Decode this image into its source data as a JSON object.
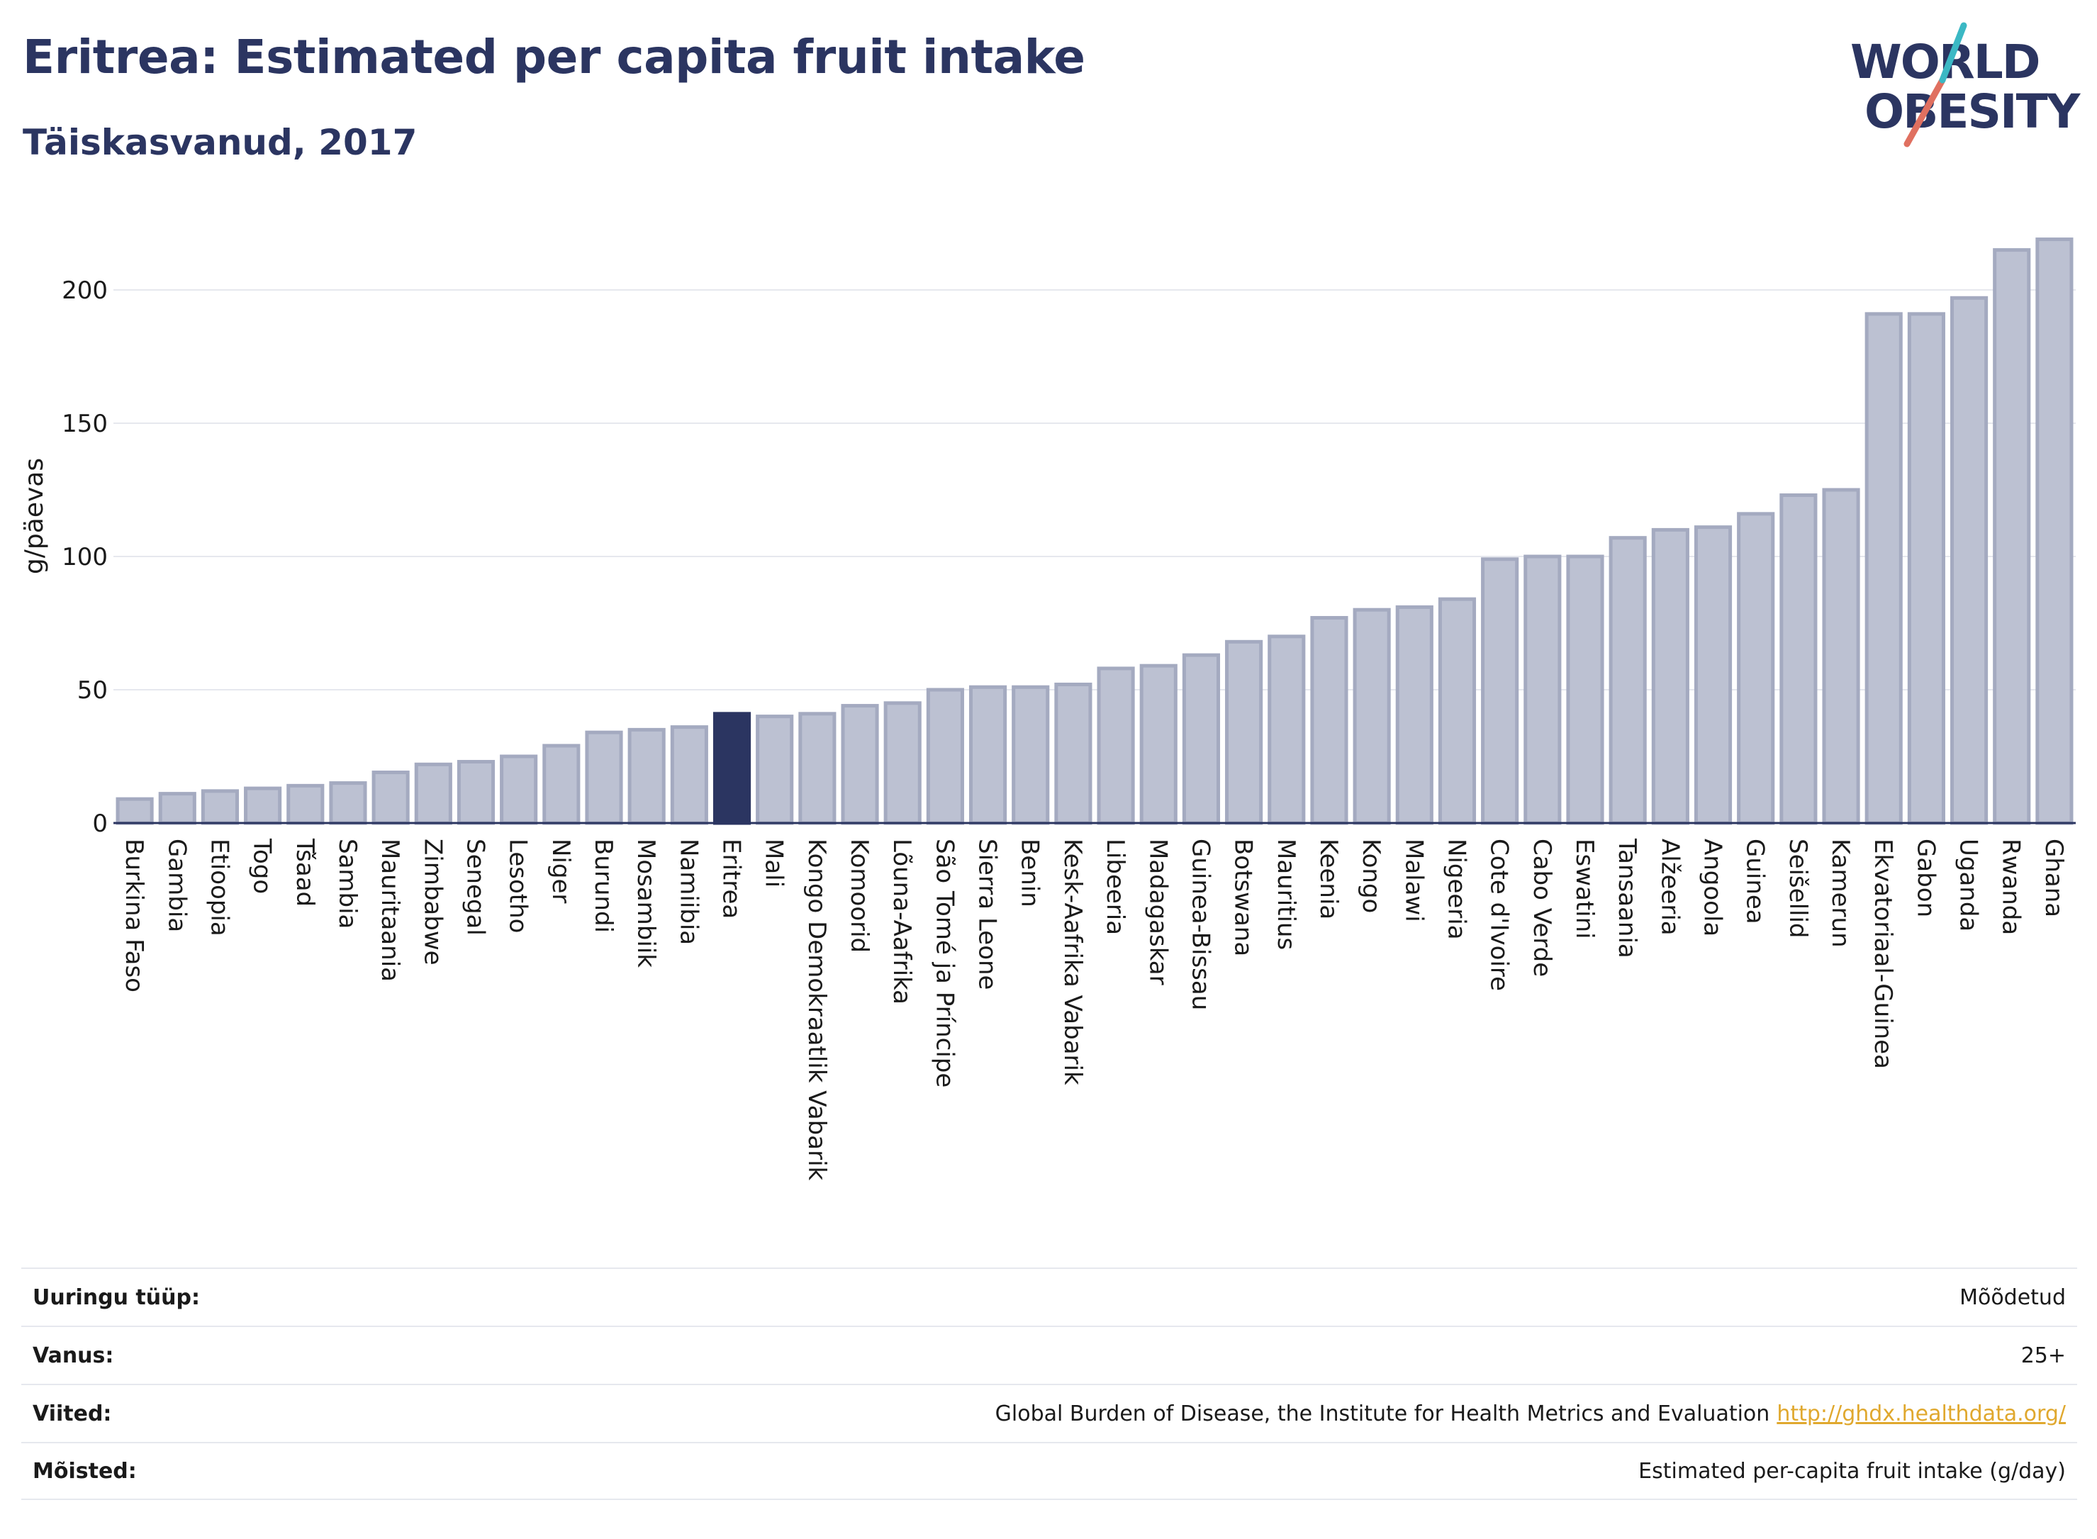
{
  "header": {
    "title": "Eritrea: Estimated per capita fruit intake",
    "subtitle": "Täiskasvanud, 2017"
  },
  "logo": {
    "line1": "WORLD",
    "line2": "OBESITY"
  },
  "colors": {
    "bar": "#bcc1d2",
    "bar_stroke": "#a4aac0",
    "highlight": "#2b3561",
    "text": "#2b3561",
    "grid": "#e6e8ee",
    "link": "#e0a82e",
    "logo_teal": "#3bb8c4",
    "logo_red": "#e07060"
  },
  "chart_data": {
    "type": "bar",
    "ylabel": "g/päevas",
    "xlabel": "",
    "ylim": [
      0,
      225
    ],
    "yticks": [
      0,
      50,
      100,
      150,
      200
    ],
    "grid": true,
    "highlight": "Eritrea",
    "categories": [
      "Burkina Faso",
      "Gambia",
      "Etioopia",
      "Togo",
      "Tšaad",
      "Sambia",
      "Mauritaania",
      "Zimbabwe",
      "Senegal",
      "Lesotho",
      "Niger",
      "Burundi",
      "Mosambiik",
      "Namiibia",
      "Eritrea",
      "Mali",
      "Kongo Demokraatlik Vabarik",
      "Komoorid",
      "Lõuna-Aafrika",
      "São Tomé ja Príncipe",
      "Sierra Leone",
      "Benin",
      "Kesk-Aafrika Vabarik",
      "Libeeria",
      "Madagaskar",
      "Guinea-Bissau",
      "Botswana",
      "Mauritius",
      "Keenia",
      "Kongo",
      "Malawi",
      "Nigeeria",
      "Cote d'Ivoire",
      "Cabo Verde",
      "Eswatini",
      "Tansaania",
      "Alžeeria",
      "Angoola",
      "Guinea",
      "Seišellid",
      "Kamerun",
      "Ekvatoriaal-Guinea",
      "Gabon",
      "Uganda",
      "Rwanda",
      "Ghana"
    ],
    "values": [
      9,
      11,
      12,
      13,
      14,
      15,
      19,
      22,
      23,
      25,
      29,
      34,
      35,
      36,
      41,
      40,
      41,
      44,
      45,
      50,
      51,
      51,
      52,
      58,
      59,
      63,
      68,
      70,
      77,
      80,
      81,
      84,
      99,
      100,
      100,
      107,
      110,
      111,
      116,
      123,
      125,
      191,
      191,
      197,
      215,
      219
    ]
  },
  "meta": {
    "rows": [
      {
        "key": "Uuringu tüüp:",
        "value": "Mõõdetud"
      },
      {
        "key": "Vanus:",
        "value": "25+"
      },
      {
        "key": "Viited:",
        "value": "Global Burden of Disease, the Institute for Health Metrics and Evaluation",
        "link": "http://ghdx.healthdata.org/"
      },
      {
        "key": "Mõisted:",
        "value": "Estimated per-capita fruit intake (g/day)"
      }
    ]
  }
}
